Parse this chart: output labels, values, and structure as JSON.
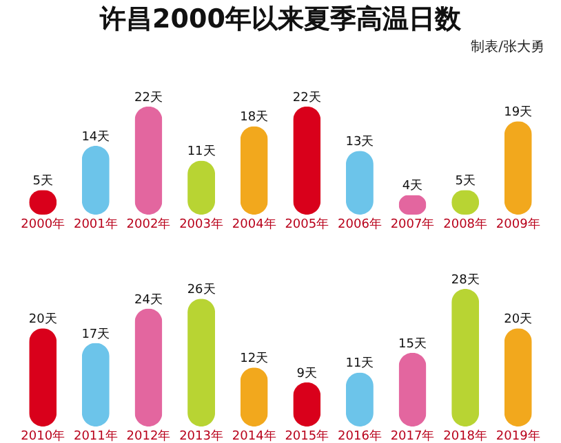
{
  "chart_data": [
    {
      "type": "bar",
      "title": "许昌2000年以来夏季高温日数",
      "annotations": [
        "制表/张大勇"
      ],
      "categories": [
        "2000年",
        "2001年",
        "2002年",
        "2003年",
        "2004年",
        "2005年",
        "2006年",
        "2007年",
        "2008年",
        "2009年"
      ],
      "values": [
        5,
        14,
        22,
        11,
        18,
        22,
        13,
        4,
        5,
        19
      ],
      "value_labels": [
        "5天",
        "14天",
        "22天",
        "11天",
        "18天",
        "22天",
        "13天",
        "4天",
        "5天",
        "19天"
      ],
      "colors": [
        "#d9001b",
        "#6cc4ea",
        "#e3669f",
        "#b8d433",
        "#f2a81d",
        "#d9001b",
        "#6cc4ea",
        "#e3669f",
        "#b8d433",
        "#f2a81d"
      ]
    },
    {
      "type": "bar",
      "categories": [
        "2010年",
        "2011年",
        "2012年",
        "2013年",
        "2014年",
        "2015年",
        "2016年",
        "2017年",
        "2018年",
        "2019年"
      ],
      "values": [
        20,
        17,
        24,
        26,
        12,
        9,
        11,
        15,
        28,
        20
      ],
      "value_labels": [
        "20天",
        "17天",
        "24天",
        "26天",
        "12天",
        "9天",
        "11天",
        "15天",
        "28天",
        "20天"
      ],
      "colors": [
        "#d9001b",
        "#6cc4ea",
        "#e3669f",
        "#b8d433",
        "#f2a81d",
        "#d9001b",
        "#6cc4ea",
        "#e3669f",
        "#b8d433",
        "#f2a81d"
      ]
    }
  ]
}
